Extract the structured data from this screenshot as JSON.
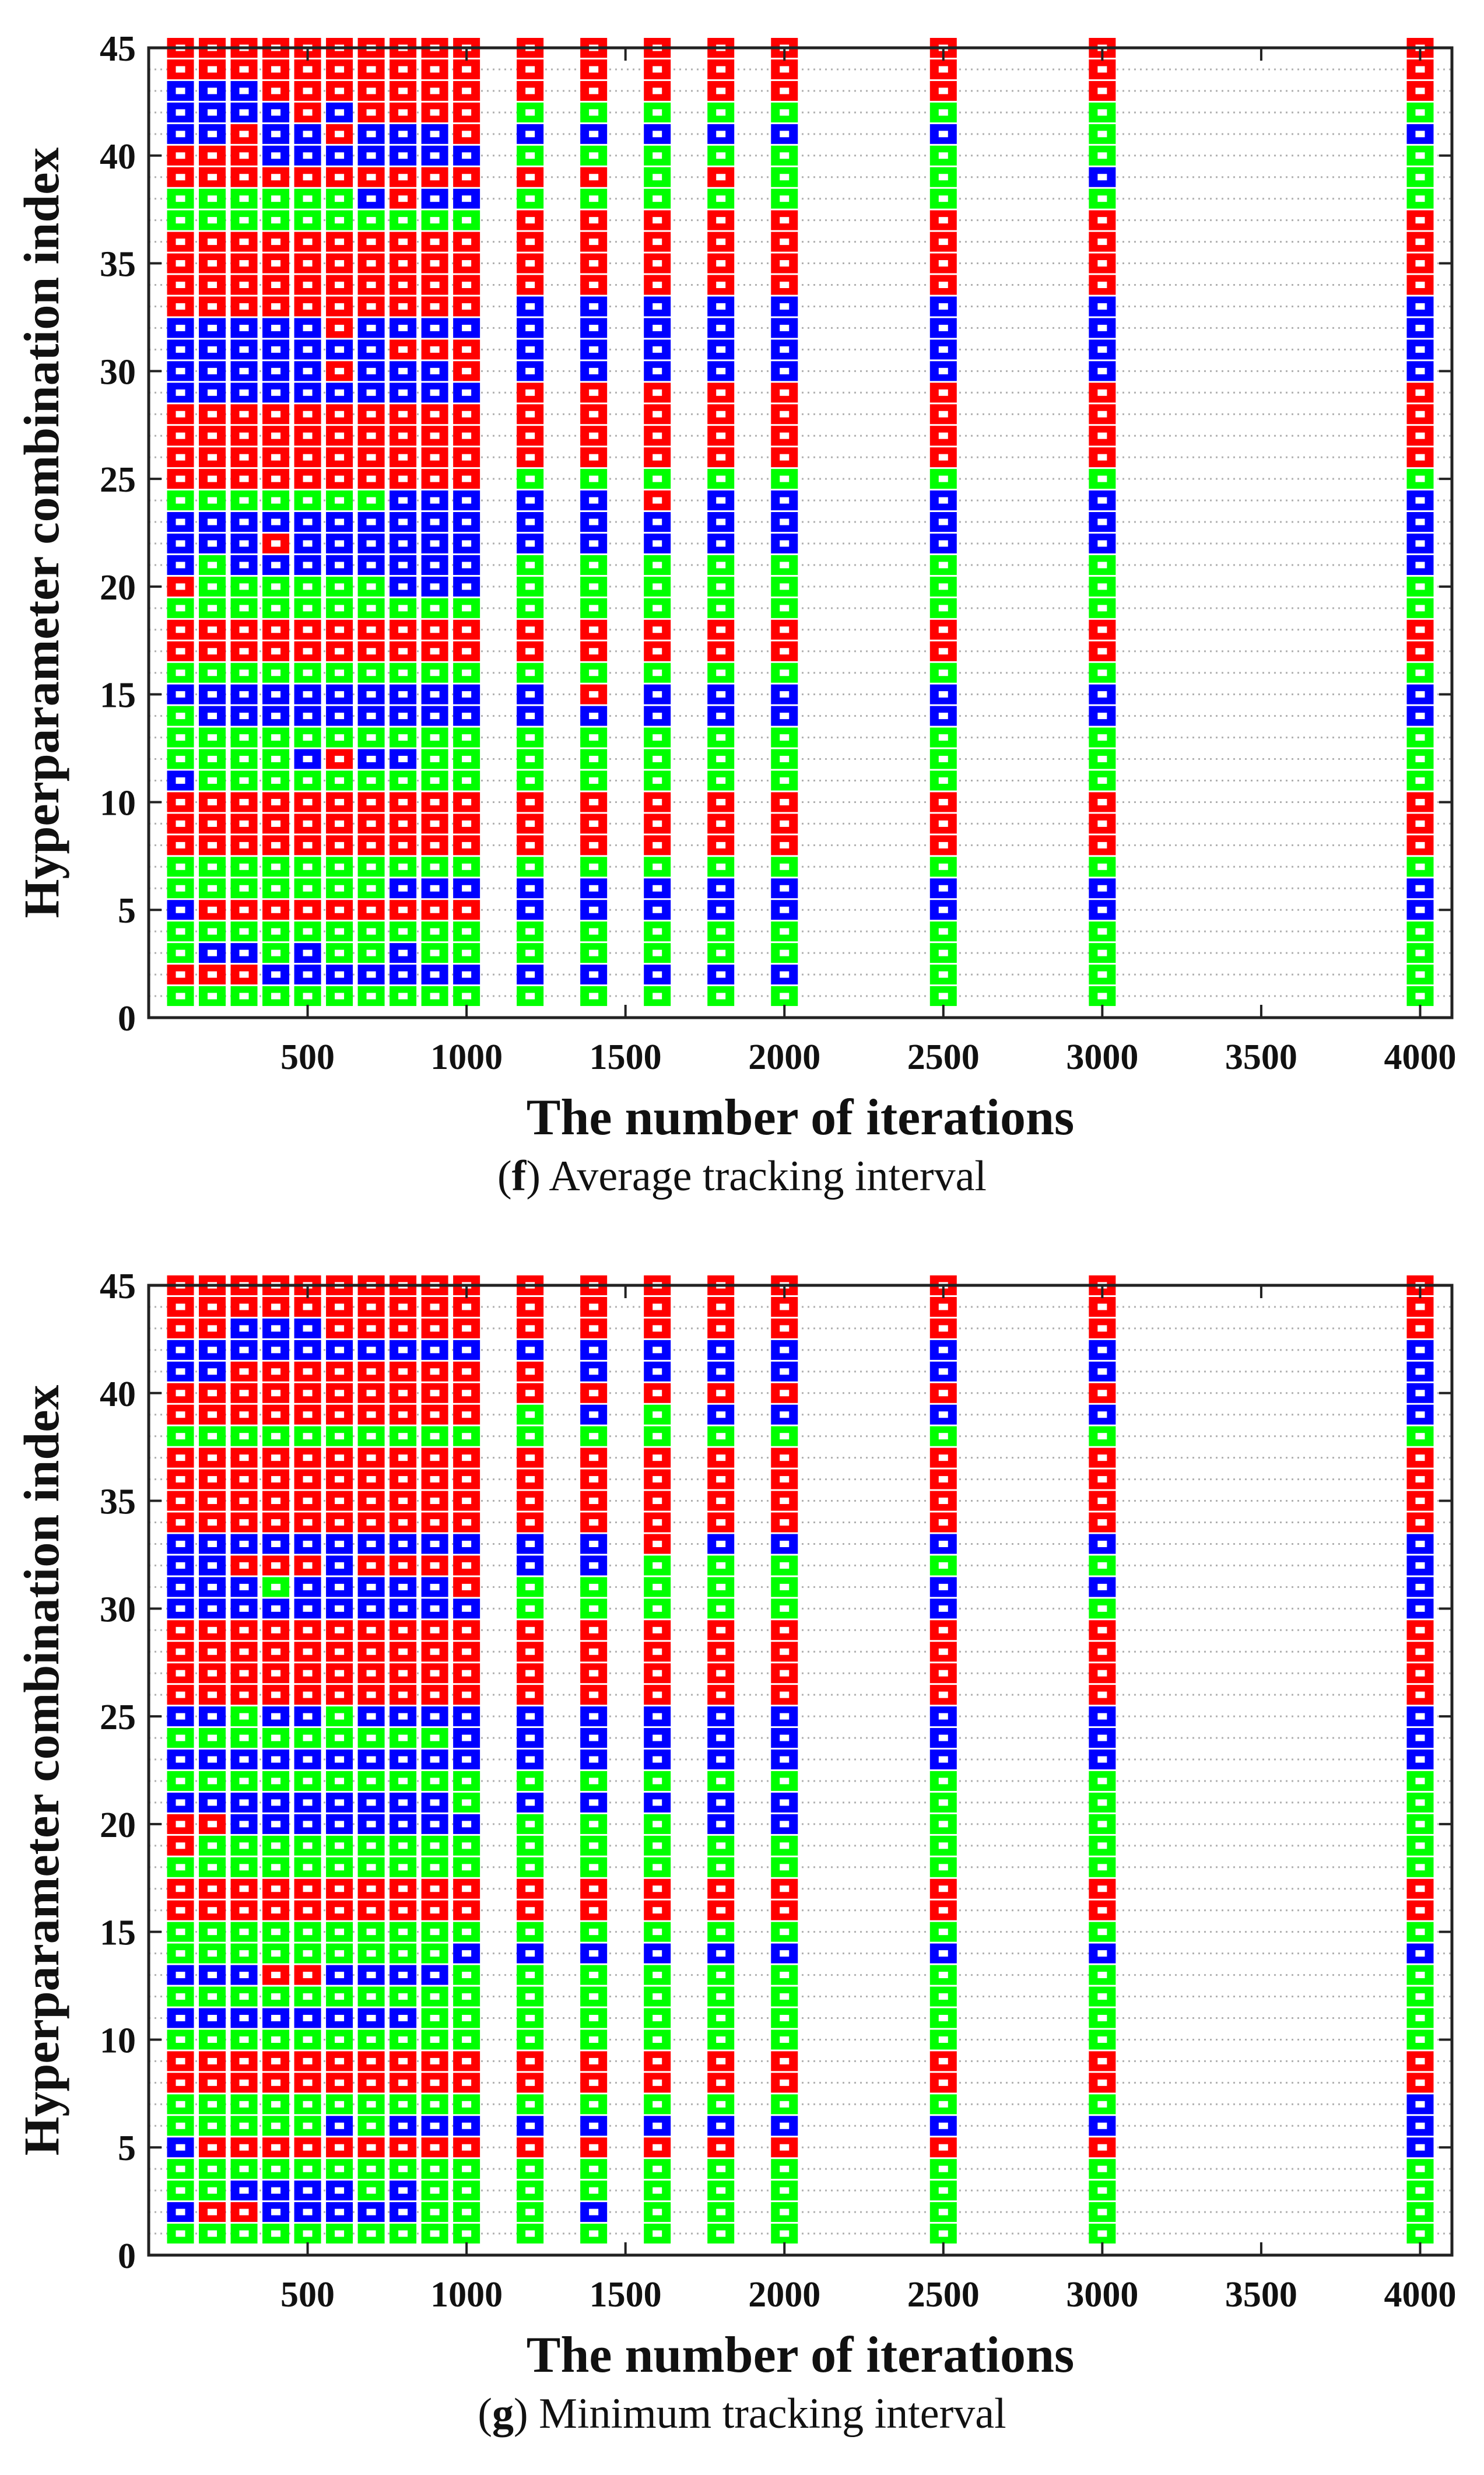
{
  "colors": {
    "green": "#00ff00",
    "blue": "#0000ff",
    "red": "#ff0000",
    "grid": "#b0b0b0",
    "axis": "#222222",
    "inner": "#ffffff"
  },
  "color_legend": {
    "G": "green",
    "B": "blue",
    "R": "red"
  },
  "chart_data": [
    {
      "type": "heatmap",
      "id": "f",
      "caption_label": "f",
      "caption_text": " Average tracking interval",
      "xlabel": "The number of iterations",
      "ylabel": "Hyperparameter combination index",
      "xlim": [
        0,
        4100
      ],
      "ylim": [
        0,
        45
      ],
      "xticks": [
        500,
        1000,
        1500,
        2000,
        2500,
        3000,
        3500,
        4000
      ],
      "xtick_labels": [
        "500",
        "1000",
        "1500",
        "2000",
        "2500",
        "3000",
        "3500",
        "4000"
      ],
      "yticks": [
        0,
        5,
        10,
        15,
        20,
        25,
        30,
        35,
        40,
        45
      ],
      "ytick_labels": [
        "0",
        "5",
        "10",
        "15",
        "20",
        "25",
        "30",
        "35",
        "40",
        "45"
      ],
      "x": [
        100,
        200,
        300,
        400,
        500,
        600,
        700,
        800,
        900,
        1000,
        1200,
        1400,
        1600,
        1800,
        2000,
        2500,
        3000,
        4000
      ],
      "y_index": [
        1,
        2,
        3,
        4,
        5,
        6,
        7,
        8,
        9,
        10,
        11,
        12,
        13,
        14,
        15,
        16,
        17,
        18,
        19,
        20,
        21,
        22,
        23,
        24,
        25,
        26,
        27,
        28,
        29,
        30,
        31,
        32,
        33,
        34,
        35,
        36,
        37,
        38,
        39,
        40,
        41,
        42,
        43,
        44,
        45
      ],
      "columns": [
        "GRGGBGGRRRBGGGBGRRGRBBBGRRRRBBBBRRRRGGRRBBBRR",
        "GRBGRGGRRRGGGBBGRRGGGBBGRRRRBBBBRRRRGGRRBBBRR",
        "GRBGRGGRRRGGGBBGRRGGBBBGRRRRBBBBRRRRGGRRRBBRR",
        "GBGGRGGRRRGGGBBGRRGGBRBGRRRRBBBBRRRRGGRBBBRRR",
        "GBBGRGGRRRGBGBBGRRGGBBBGRRRRBBBBRRRRGGRBBRRRR",
        "GBGGRGGRRRGRGBBGRRGGBBBGRRRRBRBRRRRRGGRBRBRRR",
        "GBGGRGGRRRGBGBBGRRGGBBBGRRRRBBBBRRRRGBRBBRRRR",
        "GBBGRBGRRRGBGBBGRRGBBBBBRRRRBBRBRRRRGRRBBRRRR",
        "GBGGRBGRRRGGGBBGRRGBBBBBRRRRBBRBRRRRGBRBBRRRR",
        "GBGGRBGRRRGGGBBGRRGBBBBBRRRRBRRBRRRRGBRBRRRRR",
        "GBGGBBGRRRGGGBBGRRGGGBBBGRRRRBBBBRRRRGRGBGRRR",
        "GBGGBBGRRRGGGBRGRRGGGBBBGRRRRBBBBRRRRGRGBGRRR",
        "GBGGBBGRRRGGGBBGRRGGGBBRGRRRRBBBBRRRRGGGBGRRR",
        "GBGGBBGRRRGGGBBGRRGGGBBBGRRRRBBBBRRRRGRGBGRRR",
        "GBGGBBGRRRGGGBBGRRGGGBBBGRRRRBBBBRRRRGGGBGRRR",
        "GGGGBBGRRRGGGBBGRRGGGBBBGRRRRBBBBRRRRGGGBGRRR",
        "GGGGBBGRRRGGGBBGRRGGGBBBGRRRRBBBBRRRRGBGGGRRR",
        "GGGGBBGRRRGGGBBGRRGGBBBBGRRRRBBBBRRRRGGGBGRRR"
      ]
    },
    {
      "type": "heatmap",
      "id": "g",
      "caption_label": "g",
      "caption_text": " Minimum tracking interval",
      "xlabel": "The number of iterations",
      "ylabel": "Hyperparameter combination index",
      "xlim": [
        0,
        4100
      ],
      "ylim": [
        0,
        45
      ],
      "xticks": [
        500,
        1000,
        1500,
        2000,
        2500,
        3000,
        3500,
        4000
      ],
      "xtick_labels": [
        "500",
        "1000",
        "1500",
        "2000",
        "2500",
        "3000",
        "3500",
        "4000"
      ],
      "yticks": [
        0,
        5,
        10,
        15,
        20,
        25,
        30,
        35,
        40,
        45
      ],
      "ytick_labels": [
        "0",
        "5",
        "10",
        "15",
        "20",
        "25",
        "30",
        "35",
        "40",
        "45"
      ],
      "x": [
        100,
        200,
        300,
        400,
        500,
        600,
        700,
        800,
        900,
        1000,
        1200,
        1400,
        1600,
        1800,
        2000,
        2500,
        3000,
        4000
      ],
      "y_index": [
        1,
        2,
        3,
        4,
        5,
        6,
        7,
        8,
        9,
        10,
        11,
        12,
        13,
        14,
        15,
        16,
        17,
        18,
        19,
        20,
        21,
        22,
        23,
        24,
        25,
        26,
        27,
        28,
        29,
        30,
        31,
        32,
        33,
        34,
        35,
        36,
        37,
        38,
        39,
        40,
        41,
        42,
        43,
        44,
        45
      ],
      "columns": [
        "GBGGBGGRRGBGBGGRRGRRBGBGBRRRRBBBBRRRRGRRBBRRR",
        "GRGGRGGRRGBGBGGRRGGRBGBGBRRRRBBBBRRRRGRRBBRRR",
        "GRBGRGGRRGBGBGGRRGGBBGBGGRRRRBBRBRRRRGRRRBBRR",
        "GBBGRGGRRGBGRGGRRGGBBGBGBRRRRBGRBRRRRGRRRBBRR",
        "GBBGRGGRRGBGRGGRRGGBBGBGBRRRRBBRBRRRRGRRRBBRR",
        "GBBGRBGRRGBGBGGRRGGBBGBGGRRRRBBBBRRRRGRRRBRRR",
        "GBGGRGGRRGBGBGGRRGGBBGBGBRRRRBBRBRRRRGRRRBRRR",
        "GBBGRBGRRGBGBGGRRGGBBGBGBRRRRBBRBRRRRGRRRBRRR",
        "GGGGRBGRRGGGBGGRRGGBBGBGBRRRRBBRBRRRRGRRRBRRR",
        "GGGGRBGRRGGGGBGRRGGBGGBBBRRRRBRRBRRRRGRRRBRRR",
        "GGGGRBGRRGGGGBGRRGGGBGBBBRRRRGGBBRRRRGGRRBRRR",
        "GBGGRBGRRGGGGBGRRGGGBGBBBRRRRGGBBRRRRGBRBBRRR",
        "GGGGRBGRRGGGGBGRRGGGBGBBBRRRRGGGRRRRRGGRBBRRR",
        "GGGGRBGRRGGGGBGRRGGBBGBBBRRRRGGGBRRRRGBRBBRRR",
        "GGGGRBGRRGGGGBGRRGGBBGBBBRRRRGGGBRRRRGBRBBRRR",
        "GGGGRBGRRGGGGBGRRGGGGGBBBRRRRBBGBRRRRGBRBBRRR",
        "GGGGRBGRRGGGGBGRRGGGGGBBBRRRRGBGBRRRRGBRBBRRR",
        "GGGGBBBRRGGGGBGRRGGGGGBBBRRRRBBBBRRRRGBBBBRRR"
      ]
    }
  ]
}
